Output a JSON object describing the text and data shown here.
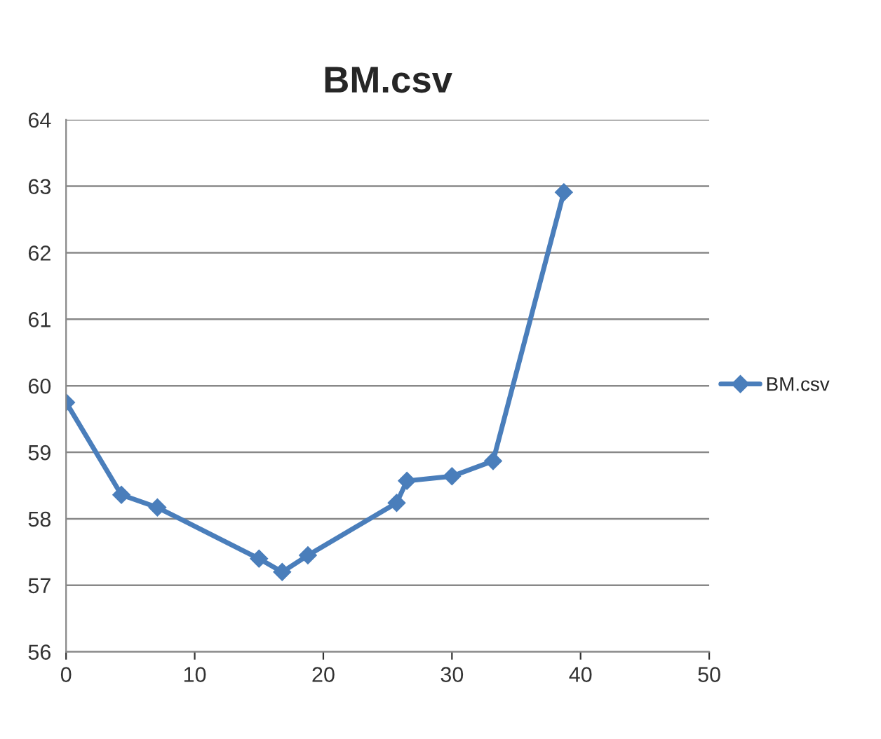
{
  "chart_data": {
    "type": "line",
    "title": "BM.csv",
    "x": [
      0,
      4.3,
      7.1,
      15.0,
      16.8,
      18.8,
      25.7,
      26.5,
      30.0,
      33.2,
      38.7
    ],
    "series": [
      {
        "name": "BM.csv",
        "color": "#4a7ebb",
        "values": [
          59.75,
          58.36,
          58.17,
          57.4,
          57.2,
          57.45,
          58.24,
          58.57,
          58.64,
          58.87,
          62.91
        ]
      }
    ],
    "xlim": [
      0,
      50
    ],
    "xticks": [
      0,
      10,
      20,
      30,
      40,
      50
    ],
    "ylim": [
      56,
      64
    ],
    "yticks": [
      56,
      57,
      58,
      59,
      60,
      61,
      62,
      63,
      64
    ],
    "grid": "y",
    "legend": "right",
    "marker": "diamond",
    "line_style": "solid"
  }
}
